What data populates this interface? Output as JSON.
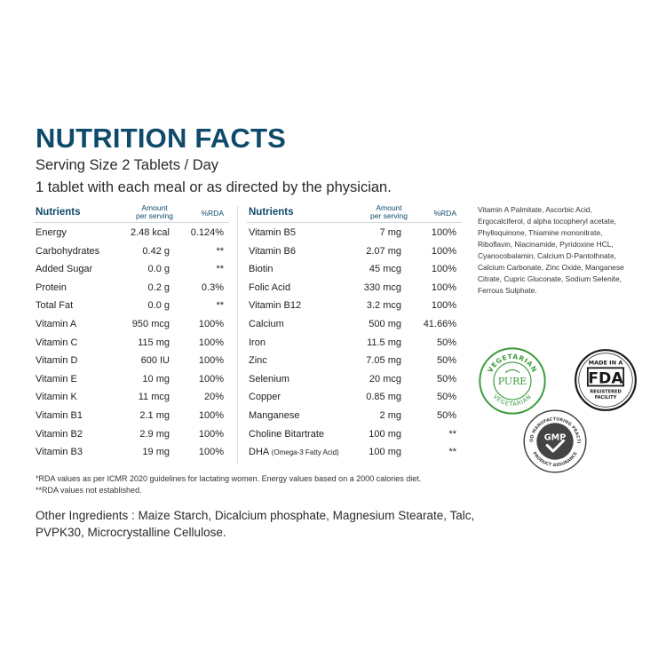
{
  "title": "NUTRITION FACTS",
  "serving": "Serving Size 2 Tablets / Day",
  "directions": "1 tablet with each meal or as directed by the physician.",
  "headers": {
    "nutrients": "Nutrients",
    "amount_line1": "Amount",
    "amount_line2": "per serving",
    "rda": "%RDA"
  },
  "left_rows": [
    {
      "name": "Energy",
      "amount": "2.48 kcal",
      "rda": "0.124%"
    },
    {
      "name": "Carbohydrates",
      "amount": "0.42 g",
      "rda": "**"
    },
    {
      "name": "Added Sugar",
      "amount": "0.0 g",
      "rda": "**"
    },
    {
      "name": "Protein",
      "amount": "0.2 g",
      "rda": "0.3%"
    },
    {
      "name": "Total Fat",
      "amount": "0.0 g",
      "rda": "**"
    },
    {
      "name": "Vitamin A",
      "amount": "950 mcg",
      "rda": "100%"
    },
    {
      "name": "Vitamin C",
      "amount": "115 mg",
      "rda": "100%"
    },
    {
      "name": "Vitamin D",
      "amount": "600 IU",
      "rda": "100%"
    },
    {
      "name": "Vitamin E",
      "amount": "10 mg",
      "rda": "100%"
    },
    {
      "name": "Vitamin K",
      "amount": "11 mcg",
      "rda": "20%"
    },
    {
      "name": "Vitamin B1",
      "amount": "2.1 mg",
      "rda": "100%"
    },
    {
      "name": "Vitamin B2",
      "amount": "2.9 mg",
      "rda": "100%"
    },
    {
      "name": "Vitamin B3",
      "amount": "19 mg",
      "rda": "100%"
    }
  ],
  "right_rows": [
    {
      "name": "Vitamin B5",
      "amount": "7 mg",
      "rda": "100%"
    },
    {
      "name": "Vitamin B6",
      "amount": "2.07 mg",
      "rda": "100%"
    },
    {
      "name": "Biotin",
      "amount": "45 mcg",
      "rda": "100%"
    },
    {
      "name": "Folic Acid",
      "amount": "330 mcg",
      "rda": "100%"
    },
    {
      "name": "Vitamin B12",
      "amount": "3.2 mcg",
      "rda": "100%"
    },
    {
      "name": "Calcium",
      "amount": "500 mg",
      "rda": "41.66%"
    },
    {
      "name": "Iron",
      "amount": "11.5 mg",
      "rda": "50%"
    },
    {
      "name": "Zinc",
      "amount": "7.05 mg",
      "rda": "50%"
    },
    {
      "name": "Selenium",
      "amount": "20 mcg",
      "rda": "50%"
    },
    {
      "name": "Copper",
      "amount": "0.85 mg",
      "rda": "50%"
    },
    {
      "name": "Manganese",
      "amount": "2 mg",
      "rda": "50%"
    },
    {
      "name": "Choline Bitartrate",
      "amount": "100 mg",
      "rda": "**"
    },
    {
      "name": "DHA",
      "name_sub": "(Omega-3 Fatty Acid)",
      "amount": "100 mg",
      "rda": "**"
    }
  ],
  "footnote1": "*RDA values as per ICMR 2020 guidelines for lactating women. Energy values based on a 2000 calories diet.",
  "footnote2": "**RDA values not established.",
  "other_ingredients": "Other Ingredients : Maize Starch, Dicalcium phosphate, Magnesium Stearate, Talc, PVPK30, Microcrystalline Cellulose.",
  "side_ingredients": "Vitamin A Palmitate, Ascorbic Acid, Ergocalciferol, d alpha tocopheryl acetate, Phylloquinone, Thiamine mononitrate, Riboflavin, Niacinamide, Pyridoxine HCL, Cyanocobalamin, Calcium D-Pantothnate, Calcium Carbonate, Zinc Oxide, Manganese Citrate, Cupric Gluconate, Sodium Selenite, Ferrous Sulphate.",
  "badges": {
    "veg_top": "VEGETARIAN",
    "veg_center": "PURE",
    "veg_bottom": "VEGETARIAN",
    "fda_top": "MADE IN A",
    "fda_logo": "FDA",
    "fda_line1": "REGISTERED",
    "fda_line2": "FACILITY",
    "gmp_top": "GOOD MANUFACTURING PRACTICE",
    "gmp_center": "GMP",
    "gmp_bottom": "PRODUCT ASSURANCE",
    "veg_color": "#3a9a3a",
    "fda_color": "#1a1a1a",
    "gmp_color": "#444444"
  }
}
